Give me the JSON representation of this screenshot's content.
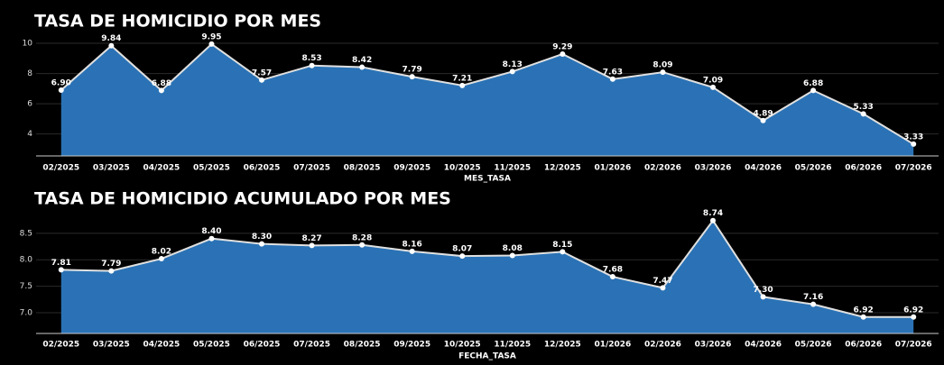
{
  "chart_data": [
    {
      "type": "area",
      "title": "TASA DE HOMICIDIO POR MES",
      "x_label": "MES_TASA",
      "categories": [
        "02/2025",
        "03/2025",
        "04/2025",
        "05/2025",
        "06/2025",
        "07/2025",
        "08/2025",
        "09/2025",
        "10/2025",
        "11/2025",
        "12/2025",
        "01/2026",
        "02/2026",
        "03/2026",
        "04/2026",
        "05/2026",
        "06/2026",
        "07/2026"
      ],
      "values": [
        6.9,
        9.84,
        6.88,
        9.95,
        7.57,
        8.53,
        8.42,
        7.79,
        7.21,
        8.13,
        9.29,
        7.63,
        8.09,
        7.09,
        4.89,
        6.88,
        5.33,
        3.33
      ],
      "value_labels": [
        "6.90",
        "9.84",
        "6.88",
        "9.95",
        "7.57",
        "8.53",
        "8.42",
        "7.79",
        "7.21",
        "8.13",
        "9.29",
        "7.63",
        "8.09",
        "7.09",
        "4.89",
        "6.88",
        "5.33",
        "3.33"
      ],
      "color": "#2a72b5",
      "line_color": "#e0e0e0",
      "ylim": [
        2.55,
        10.6
      ],
      "yticks": [
        4,
        6,
        8,
        10
      ],
      "grid": true
    },
    {
      "type": "area",
      "title": "TASA DE HOMICIDIO ACUMULADO POR MES",
      "x_label": "FECHA_TASA",
      "categories": [
        "02/2025",
        "03/2025",
        "04/2025",
        "05/2025",
        "06/2025",
        "07/2025",
        "08/2025",
        "09/2025",
        "10/2025",
        "11/2025",
        "12/2025",
        "01/2026",
        "02/2026",
        "03/2026",
        "04/2026",
        "05/2026",
        "06/2026",
        "07/2026"
      ],
      "values": [
        7.81,
        7.79,
        8.02,
        8.4,
        8.3,
        8.27,
        8.28,
        8.16,
        8.07,
        8.08,
        8.15,
        7.68,
        7.47,
        8.74,
        7.3,
        7.16,
        6.92,
        6.92
      ],
      "value_labels": [
        "7.81",
        "7.79",
        "8.02",
        "8.40",
        "8.30",
        "8.27",
        "8.28",
        "8.16",
        "8.07",
        "8.08",
        "8.15",
        "7.68",
        "7.47",
        "8.74",
        "7.30",
        "7.16",
        "6.92",
        "6.92"
      ],
      "color": "#2a72b5",
      "line_color": "#e0e0e0",
      "ylim": [
        6.61,
        8.99
      ],
      "yticks": [
        {
          "value": 7,
          "label": "7.0"
        },
        7.5,
        {
          "value": 8,
          "label": "8.0"
        },
        8.5
      ],
      "grid": true
    }
  ]
}
